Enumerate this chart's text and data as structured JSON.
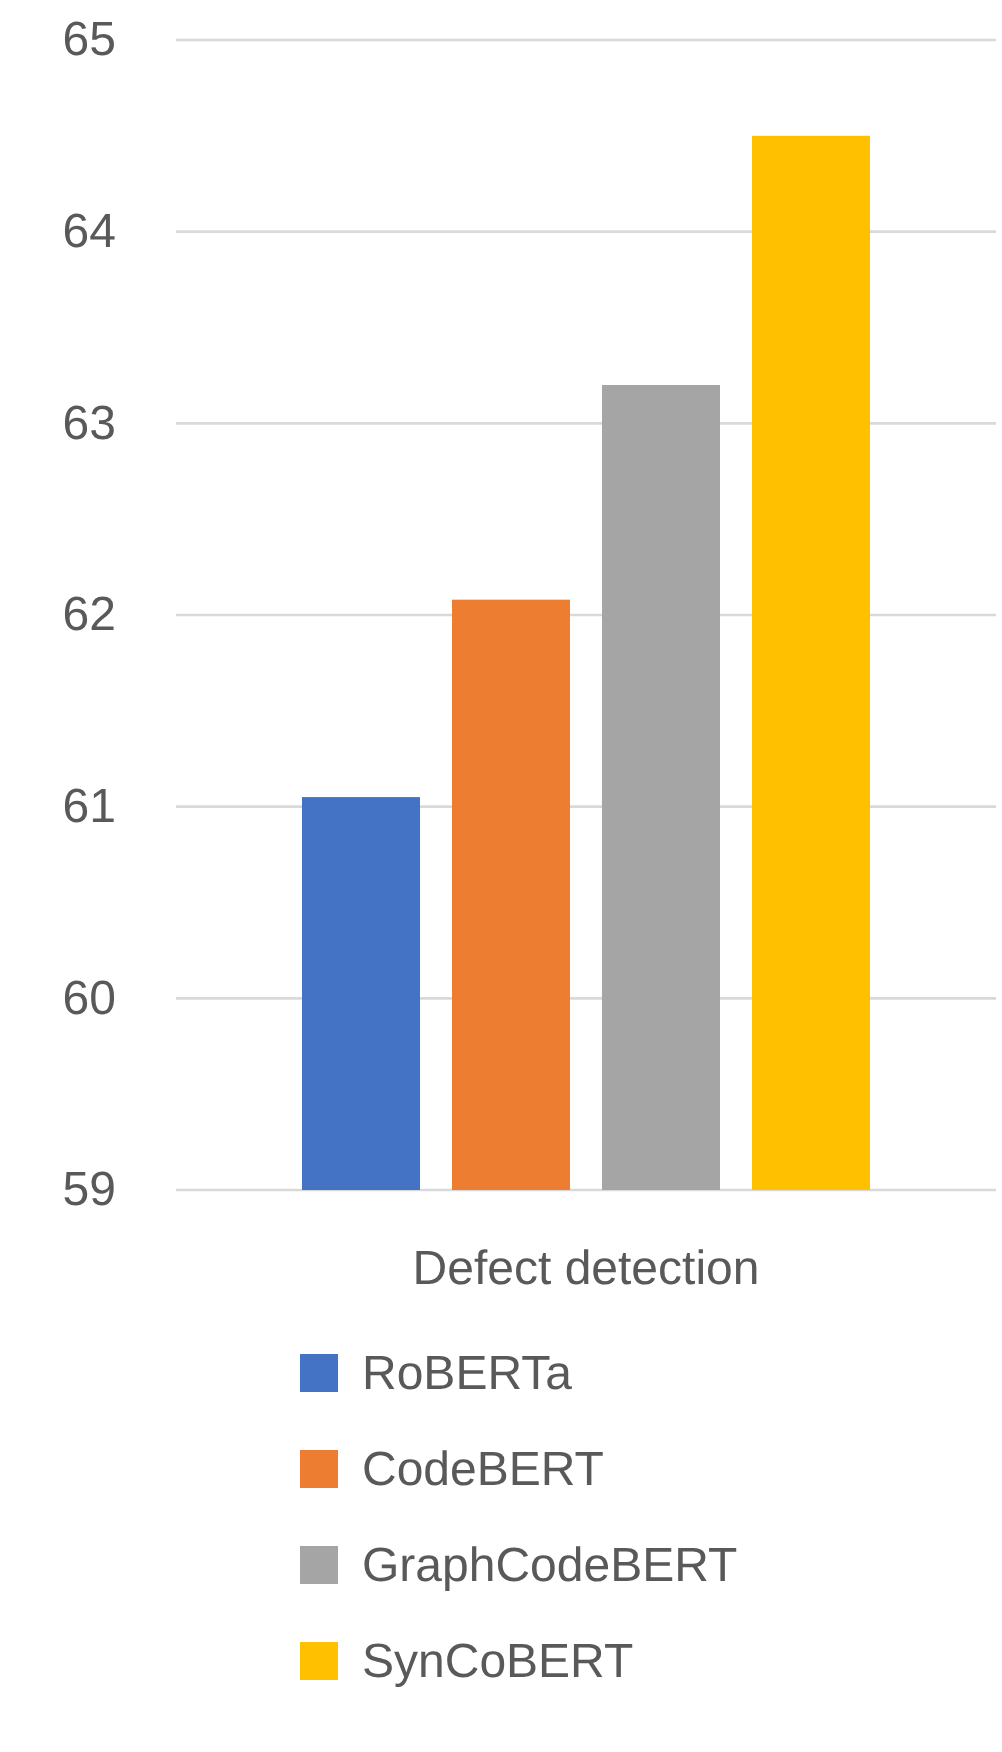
{
  "chart_data": {
    "type": "bar",
    "xlabel": "Defect detection",
    "categories": [
      null
    ],
    "series": [
      {
        "name": "RoBERTa",
        "color": "#4472c4",
        "values": [
          61.05
        ]
      },
      {
        "name": "CodeBERT",
        "color": "#ed7d31",
        "values": [
          62.08
        ]
      },
      {
        "name": "GraphCodeBERT",
        "color": "#a5a5a5",
        "values": [
          63.2
        ]
      },
      {
        "name": "SynCoBERT",
        "color": "#ffc000",
        "values": [
          64.5
        ]
      }
    ],
    "ylim": [
      59,
      65
    ],
    "yticks": [
      59,
      60,
      61,
      62,
      63,
      64,
      65
    ],
    "grid": "y",
    "legend": "bottom"
  }
}
